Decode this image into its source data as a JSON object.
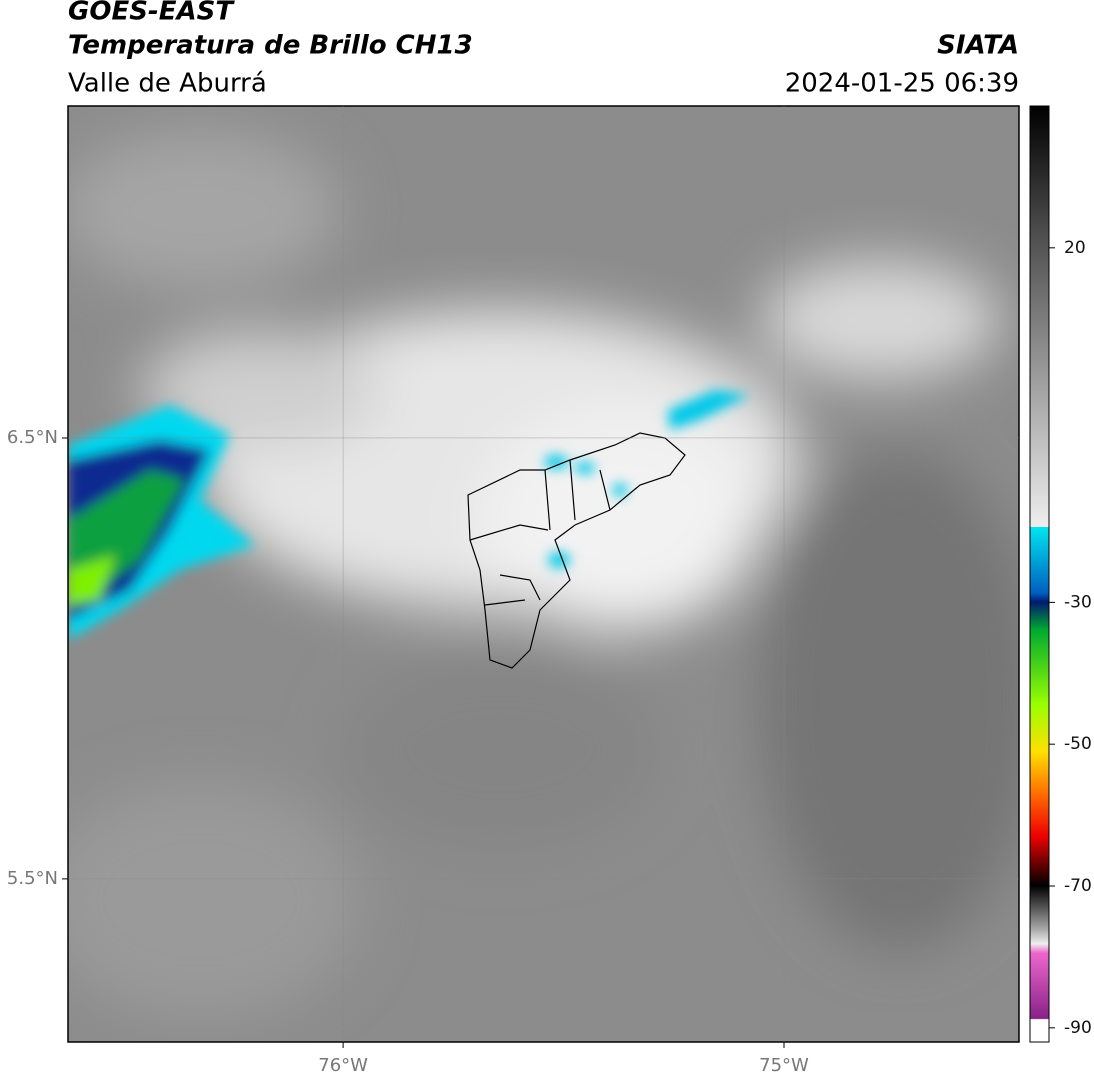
{
  "header": {
    "title": "GOES-EAST",
    "subtitle": "Temperatura de Brillo CH13",
    "region": "Valle de Aburrá",
    "source": "SIATA",
    "timestamp": "2024-01-25 06:39"
  },
  "map": {
    "xlim": [
      -76.624,
      -74.467
    ],
    "ylim": [
      5.13,
      7.253
    ],
    "xticks": [
      {
        "value": -76,
        "label": "76°W"
      },
      {
        "value": -75,
        "label": "75°W"
      }
    ],
    "yticks": [
      {
        "value": 6.5,
        "label": "6.5°N"
      },
      {
        "value": 5.5,
        "label": "5.5°N"
      }
    ]
  },
  "colorbar": {
    "lim": [
      -92,
      40
    ],
    "ticks": [
      20,
      -30,
      -50,
      -70,
      -90
    ]
  }
}
